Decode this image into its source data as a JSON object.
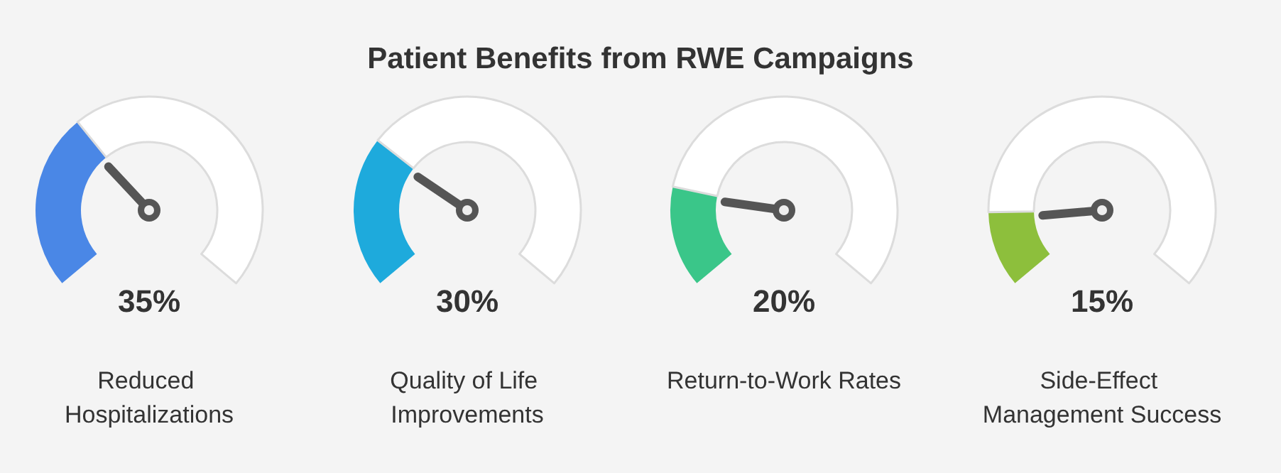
{
  "chart_data": [
    {
      "type": "donut",
      "title": "Patient Benefits from RWE Campaigns",
      "subtitle": "Reduced Hospitalizations",
      "categories": [
        null,
        null
      ],
      "values": [
        35,
        65
      ],
      "colors": [
        "#4a87e6",
        "#ffffff"
      ],
      "annotations": [
        "35%"
      ]
    },
    {
      "type": "donut",
      "subtitle": "Quality of Life Improvements",
      "categories": [
        null,
        null
      ],
      "values": [
        30,
        70
      ],
      "colors": [
        "#1eaadc",
        "#ffffff"
      ],
      "annotations": [
        "30%"
      ]
    },
    {
      "type": "donut",
      "subtitle": "Return-to-Work Rates",
      "categories": [
        null,
        null
      ],
      "values": [
        20,
        80
      ],
      "colors": [
        "#3ac689",
        "#ffffff"
      ],
      "annotations": [
        "20%"
      ]
    },
    {
      "type": "donut",
      "subtitle": "Side-Effect Management Success",
      "categories": [
        null,
        null
      ],
      "values": [
        15,
        85
      ],
      "colors": [
        "#8dbf3c",
        "#ffffff"
      ],
      "annotations": [
        "15%"
      ]
    }
  ]
}
